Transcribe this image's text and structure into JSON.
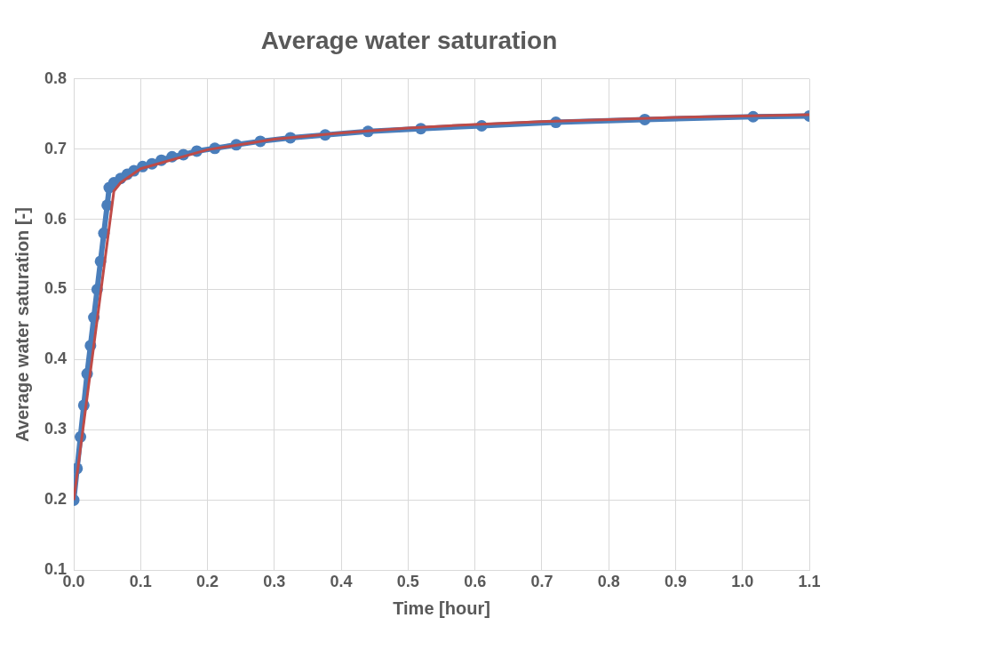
{
  "chart_data": {
    "type": "line",
    "title": "Average water saturation",
    "xlabel": "Time [hour]",
    "ylabel": "Average water saturation [-]",
    "xlim": [
      0,
      1.1
    ],
    "xticks": [
      {
        "value": 0,
        "label": "0.0"
      },
      0.1,
      0.2,
      0.3,
      0.4,
      0.5,
      0.6,
      0.7,
      0.8,
      0.9,
      {
        "value": 1,
        "label": "1.0"
      },
      1.1
    ],
    "ylim": [
      0.1,
      0.8
    ],
    "yticks": [
      0.1,
      0.2,
      0.3,
      0.4,
      0.5,
      0.6,
      0.7,
      0.8
    ],
    "grid": true,
    "legend": false,
    "series": [
      {
        "color": "#4a7ebb",
        "marker": "circle",
        "x": [
          0,
          0.005,
          0.01,
          0.015,
          0.02,
          0.025,
          0.03,
          0.035,
          0.04,
          0.045,
          0.05,
          0.053,
          0.06,
          0.07,
          0.08,
          0.09,
          0.103,
          0.117,
          0.131,
          0.147,
          0.164,
          0.184,
          0.211,
          0.243,
          0.279,
          0.324,
          0.376,
          0.44,
          0.519,
          0.61,
          0.721,
          0.854,
          1.016,
          1.1
        ],
        "values": [
          0.2,
          0.245,
          0.29,
          0.335,
          0.38,
          0.42,
          0.46,
          0.5,
          0.54,
          0.58,
          0.62,
          0.645,
          0.652,
          0.658,
          0.664,
          0.669,
          0.675,
          0.679,
          0.684,
          0.689,
          0.692,
          0.697,
          0.701,
          0.706,
          0.711,
          0.716,
          0.72,
          0.725,
          0.729,
          0.733,
          0.738,
          0.742,
          0.746,
          0.747
        ]
      },
      {
        "color": "#be4b48",
        "marker": "none",
        "x": [
          0,
          0.06,
          0.07,
          0.1,
          0.2,
          0.3,
          0.4,
          0.5,
          0.6,
          0.7,
          0.8,
          0.9,
          1.0,
          1.1
        ],
        "values": [
          0.2,
          0.64,
          0.652,
          0.672,
          0.699,
          0.714,
          0.723,
          0.73,
          0.735,
          0.739,
          0.742,
          0.745,
          0.747,
          0.749
        ]
      }
    ]
  }
}
